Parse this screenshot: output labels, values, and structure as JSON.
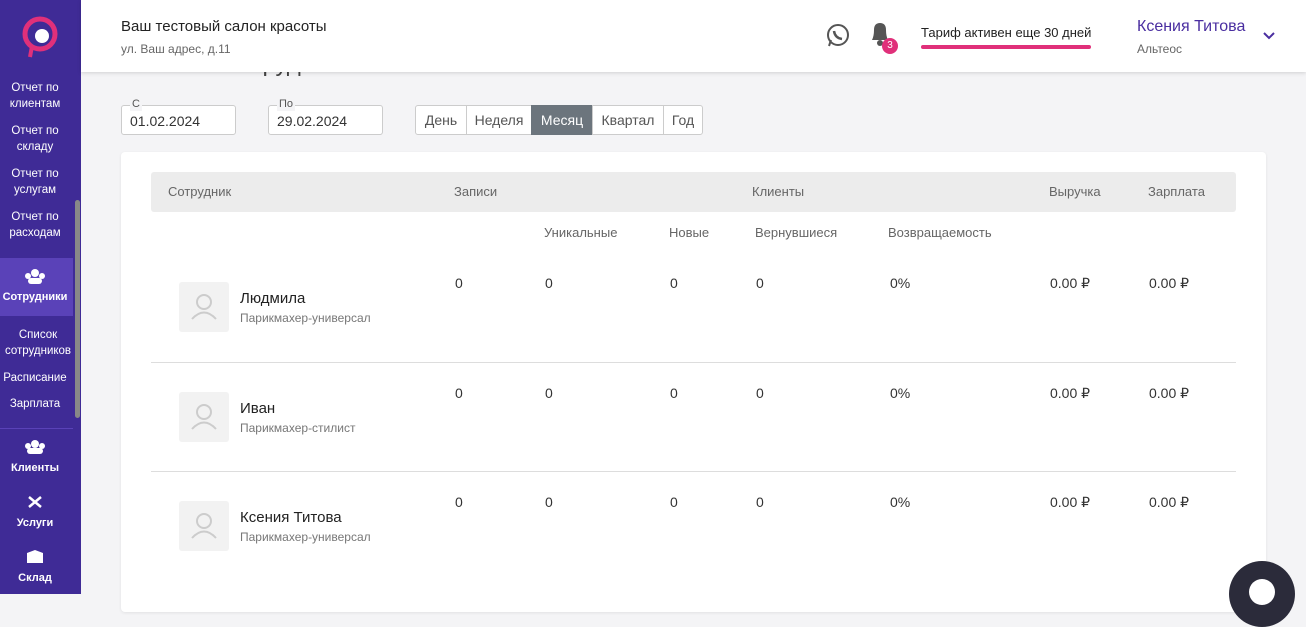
{
  "sidebar": {
    "reports": [
      "Отчет по клиентам",
      "Отчет по складу",
      "Отчет по услугам",
      "Отчет по расходам"
    ],
    "active_section": "Сотрудники",
    "subitems": [
      "Список сотрудников",
      "Расписание",
      "Зарплата"
    ],
    "sections": [
      "Клиенты",
      "Услуги",
      "Склад"
    ]
  },
  "header": {
    "salon": "Ваш тестовый салон красоты",
    "address": "ул. Ваш адрес, д.11",
    "notifications": 3,
    "tariff": "Тариф активен еще 30 дней",
    "user": "Ксения Титова",
    "company": "Альтеос"
  },
  "page_title": "Отчет по сотрудникам",
  "filters": {
    "from_label": "С",
    "from": "01.02.2024",
    "to_label": "По",
    "to": "29.02.2024",
    "periods": [
      "День",
      "Неделя",
      "Месяц",
      "Квартал",
      "Год"
    ],
    "active_period": 2
  },
  "table": {
    "headers": [
      "Сотрудник",
      "Записи",
      "Клиенты",
      "Выручка",
      "Зарплата"
    ],
    "subheaders": [
      "Уникальные",
      "Новые",
      "Вернувшиеся",
      "Возвращаемость"
    ],
    "rows": [
      {
        "name": "Людмила",
        "role": "Парикмахер-универсал",
        "records": 0,
        "unique": 0,
        "new": 0,
        "returned": 0,
        "return_rate": "0%",
        "revenue": "0.00 ₽",
        "salary": "0.00 ₽"
      },
      {
        "name": "Иван",
        "role": "Парикмахер-стилист",
        "records": 0,
        "unique": 0,
        "new": 0,
        "returned": 0,
        "return_rate": "0%",
        "revenue": "0.00 ₽",
        "salary": "0.00 ₽"
      },
      {
        "name": "Ксения Титова",
        "role": "Парикмахер-универсал",
        "records": 0,
        "unique": 0,
        "new": 0,
        "returned": 0,
        "return_rate": "0%",
        "revenue": "0.00 ₽",
        "salary": "0.00 ₽"
      }
    ]
  }
}
